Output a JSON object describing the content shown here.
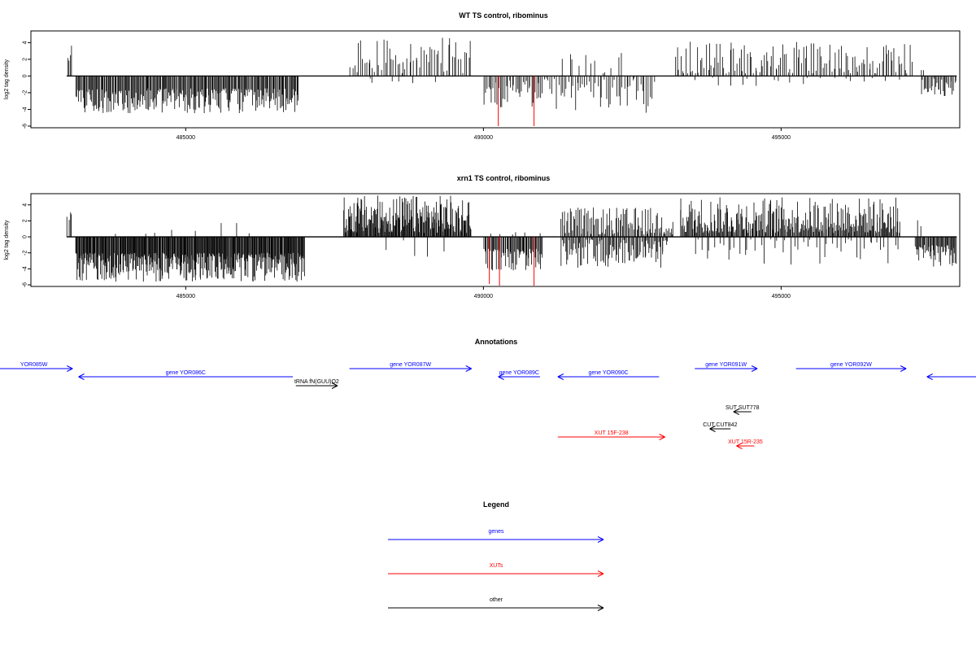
{
  "chart_data": [
    {
      "type": "bar",
      "title": "WT TS control, ribominus",
      "ylabel": "log2 tag density",
      "xlabel": "",
      "xlim": [
        482400,
        498000
      ],
      "ylim": [
        -6.2,
        5.4
      ],
      "xticks": [
        485000,
        490000,
        495000
      ],
      "yticks": [
        -6,
        -4,
        -2,
        0,
        2,
        4
      ],
      "grid": false,
      "colors": {
        "bars": "#000000",
        "highlight": "#ff0000"
      },
      "segments": [
        {
          "strand": "+",
          "start": 483000,
          "end": 483100,
          "count": 4,
          "min": 1.2,
          "max": 3.7
        },
        {
          "strand": "-",
          "start": 483150,
          "end": 486900,
          "count": 260,
          "min": 1.5,
          "max": 4.5
        },
        {
          "strand": "+",
          "start": 487750,
          "end": 489800,
          "count": 60,
          "min": 0.3,
          "max": 4.6
        },
        {
          "strand": "-",
          "start": 487900,
          "end": 489200,
          "count": 6,
          "min": 0.3,
          "max": 1.2
        },
        {
          "strand": "-",
          "start": 490000,
          "end": 491000,
          "count": 40,
          "min": 0.5,
          "max": 3.8
        },
        {
          "strand": "-",
          "start": 491000,
          "end": 492900,
          "count": 55,
          "min": 0.3,
          "max": 4.5
        },
        {
          "strand": "+",
          "start": 491300,
          "end": 492400,
          "count": 12,
          "min": 0.3,
          "max": 3.0
        },
        {
          "strand": "+",
          "start": 493200,
          "end": 497200,
          "count": 130,
          "min": 0.3,
          "max": 4.1
        },
        {
          "strand": "-",
          "start": 493500,
          "end": 497000,
          "count": 20,
          "min": 0.2,
          "max": 1.2
        },
        {
          "strand": "+",
          "start": 497350,
          "end": 497400,
          "count": 2,
          "min": 0.5,
          "max": 1.3
        },
        {
          "strand": "-",
          "start": 497350,
          "end": 497950,
          "count": 30,
          "min": 0.3,
          "max": 2.4
        }
      ],
      "highlights": [
        {
          "x": 490250,
          "y": -6.0
        },
        {
          "x": 490850,
          "y": -6.0
        }
      ]
    },
    {
      "type": "bar",
      "title": "xrn1 TS control, ribominus",
      "ylabel": "log2 tag density",
      "xlabel": "",
      "xlim": [
        482400,
        498000
      ],
      "ylim": [
        -6.2,
        5.4
      ],
      "xticks": [
        485000,
        490000,
        495000
      ],
      "yticks": [
        -6,
        -4,
        -2,
        0,
        2,
        4
      ],
      "grid": false,
      "colors": {
        "bars": "#000000",
        "highlight": "#ff0000"
      },
      "segments": [
        {
          "strand": "+",
          "start": 483000,
          "end": 483100,
          "count": 4,
          "min": 1.0,
          "max": 3.4
        },
        {
          "strand": "-",
          "start": 483150,
          "end": 487000,
          "count": 380,
          "min": 2.0,
          "max": 5.6
        },
        {
          "strand": "+",
          "start": 483800,
          "end": 486300,
          "count": 8,
          "min": 0.3,
          "max": 1.8
        },
        {
          "strand": "+",
          "start": 487650,
          "end": 489800,
          "count": 200,
          "min": 0.5,
          "max": 5.2
        },
        {
          "strand": "-",
          "start": 488200,
          "end": 489500,
          "count": 5,
          "min": 0.3,
          "max": 2.8
        },
        {
          "strand": "-",
          "start": 490000,
          "end": 491000,
          "count": 70,
          "min": 1.5,
          "max": 4.3
        },
        {
          "strand": "+",
          "start": 490000,
          "end": 491000,
          "count": 6,
          "min": 0.3,
          "max": 0.9
        },
        {
          "strand": "+",
          "start": 491300,
          "end": 493200,
          "count": 100,
          "min": 0.3,
          "max": 3.7
        },
        {
          "strand": "-",
          "start": 491300,
          "end": 493100,
          "count": 100,
          "min": 0.3,
          "max": 3.9
        },
        {
          "strand": "+",
          "start": 493300,
          "end": 497000,
          "count": 260,
          "min": 0.5,
          "max": 5.0
        },
        {
          "strand": "-",
          "start": 493500,
          "end": 497000,
          "count": 50,
          "min": 0.3,
          "max": 3.5
        },
        {
          "strand": "+",
          "start": 497250,
          "end": 497350,
          "count": 2,
          "min": 0.5,
          "max": 2.5
        },
        {
          "strand": "-",
          "start": 497250,
          "end": 497950,
          "count": 50,
          "min": 1.0,
          "max": 3.8
        }
      ],
      "highlights": [
        {
          "x": 490100,
          "y": -5.9
        },
        {
          "x": 490270,
          "y": -6.1
        },
        {
          "x": 490850,
          "y": -6.1
        }
      ]
    }
  ],
  "annotations": {
    "title": "Annotations",
    "xlim": [
      482400,
      498000
    ],
    "features": [
      {
        "label": "YOR085W",
        "start": 481800,
        "end": 483100,
        "strand": "+",
        "row": 0,
        "category": "gene"
      },
      {
        "label": "gene YOR086C",
        "start": 483200,
        "end": 486800,
        "strand": "-",
        "row": 1,
        "category": "gene"
      },
      {
        "label": "tRNA fN(GUU)O2",
        "start": 486850,
        "end": 487550,
        "strand": "+",
        "row": 2,
        "category": "other"
      },
      {
        "label": "gene YOR087W",
        "start": 487750,
        "end": 489800,
        "strand": "+",
        "row": 0,
        "category": "gene"
      },
      {
        "label": "gene YOR089C",
        "start": 490250,
        "end": 490950,
        "strand": "-",
        "row": 1,
        "category": "gene"
      },
      {
        "label": "gene YOR090C",
        "start": 491250,
        "end": 492950,
        "strand": "-",
        "row": 1,
        "category": "gene"
      },
      {
        "label": "gene YOR091W",
        "start": 493550,
        "end": 494600,
        "strand": "+",
        "row": 0,
        "category": "gene"
      },
      {
        "label": "gene YOR092W",
        "start": 495250,
        "end": 497100,
        "strand": "+",
        "row": 0,
        "category": "gene"
      },
      {
        "label": "",
        "start": 497450,
        "end": 498600,
        "strand": "-",
        "row": 1,
        "category": "gene"
      },
      {
        "label": "SUT SUT778",
        "start": 494200,
        "end": 494500,
        "strand": "-",
        "row": 3,
        "category": "other"
      },
      {
        "label": "CUT CUT842",
        "start": 493800,
        "end": 494150,
        "strand": "-",
        "row": 4,
        "category": "other"
      },
      {
        "label": "XUT 15F-238",
        "start": 491250,
        "end": 493050,
        "strand": "+",
        "row": 5,
        "category": "xut"
      },
      {
        "label": "XUT 15R-235",
        "start": 494250,
        "end": 494550,
        "strand": "-",
        "row": 6,
        "category": "xut"
      }
    ]
  },
  "legend": {
    "title": "Legend",
    "items": [
      {
        "label": "genes",
        "color": "#0000ff"
      },
      {
        "label": "XUTs",
        "color": "#ff0000"
      },
      {
        "label": "other",
        "color": "#000000"
      }
    ]
  }
}
